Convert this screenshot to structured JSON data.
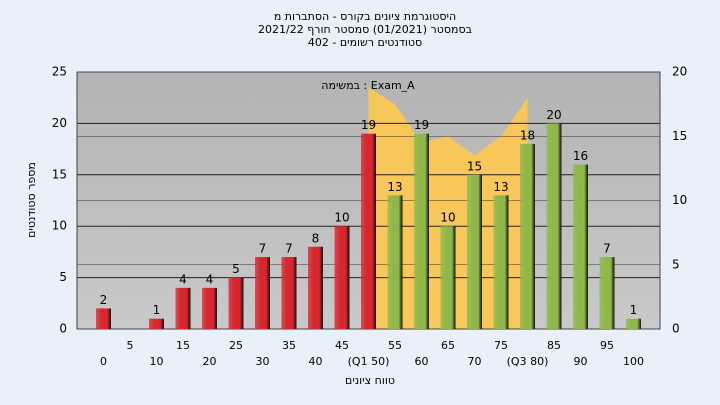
{
  "chart_data": {
    "type": "bar",
    "title": "היסטוגרמת ציונים בקורס - הסתברות מ",
    "subtitle": [
      "בסמסטר  (01/2021)  סמסטר חורף  2021/22",
      "סטודנטים רשומים - 402"
    ],
    "annotation": "במשימה : Exam_A",
    "ylabel": "מספר סטודנטים",
    "xlabel": "טווח ציונים",
    "categories": [
      "0",
      "5",
      "10",
      "15",
      "20",
      "25",
      "30",
      "35",
      "40",
      "45",
      "(Q1 50)",
      "55",
      "60",
      "65",
      "70",
      "75",
      "(Q3 80)",
      "85",
      "90",
      "95",
      "100"
    ],
    "values": [
      2,
      0,
      1,
      4,
      4,
      5,
      7,
      7,
      8,
      10,
      19,
      13,
      19,
      10,
      15,
      13,
      18,
      20,
      16,
      7,
      1
    ],
    "colors": [
      "#d8262e",
      "#d8262e",
      "#d8262e",
      "#d8262e",
      "#d8262e",
      "#d8262e",
      "#d8262e",
      "#d8262e",
      "#d8262e",
      "#d8262e",
      "#d8262e",
      "#8fb84a",
      "#8fb84a",
      "#8fb84a",
      "#8fb84a",
      "#8fb84a",
      "#8fb84a",
      "#8fb84a",
      "#8fb84a",
      "#8fb84a",
      "#8fb84a"
    ],
    "area": {
      "name": "Exam_A",
      "color": "#ffc94f",
      "axis": "y2",
      "values": [
        null,
        null,
        null,
        null,
        null,
        null,
        null,
        null,
        null,
        null,
        18.8,
        17.5,
        14.5,
        15,
        13.5,
        15,
        18,
        null,
        null,
        null,
        null
      ]
    },
    "ylim": [
      0,
      25
    ],
    "yticks": [
      0,
      5,
      10,
      15,
      20,
      25
    ],
    "y2lim": [
      0,
      20
    ],
    "y2ticks": [
      0,
      5,
      10,
      15,
      20
    ],
    "grid": true
  }
}
